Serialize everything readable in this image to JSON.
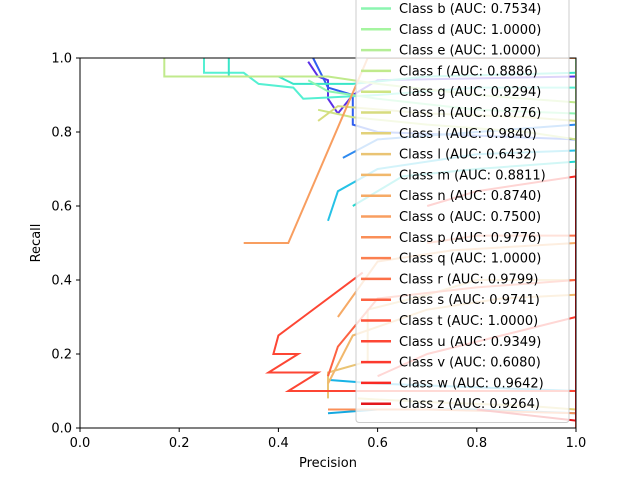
{
  "chart_data": {
    "type": "line",
    "title": "",
    "xlabel": "Precision",
    "ylabel": "Recall",
    "xlim": [
      0,
      1
    ],
    "ylim": [
      0,
      1
    ],
    "xticks": [
      "0.0",
      "0.2",
      "0.4",
      "0.6",
      "0.8",
      "1.0"
    ],
    "yticks": [
      "0.0",
      "0.2",
      "0.4",
      "0.6",
      "0.8",
      "1.0"
    ],
    "grid": false,
    "legend_position": "top-right",
    "series": [
      {
        "name": "Class b (AUC: 0.7534)",
        "color": "#8cf5b0",
        "points": [
          [
            0.46,
            0.94
          ],
          [
            0.5,
            0.91
          ],
          [
            0.6,
            0.89
          ],
          [
            0.8,
            0.86
          ],
          [
            1.0,
            0.85
          ]
        ]
      },
      {
        "name": "Class d (AUC: 1.0000)",
        "color": "#a5f5a0",
        "points": [
          [
            1.0,
            1.0
          ],
          [
            1.0,
            0.0
          ]
        ]
      },
      {
        "name": "Class e (AUC: 1.0000)",
        "color": "#b4ee96",
        "points": [
          [
            1.0,
            0.98
          ],
          [
            1.0,
            0.0
          ]
        ]
      },
      {
        "name": "Class f (AUC: 0.8886)",
        "color": "#c0ea8c",
        "points": [
          [
            0.17,
            1.0
          ],
          [
            0.17,
            0.95
          ],
          [
            0.5,
            0.95
          ],
          [
            0.6,
            0.93
          ],
          [
            0.8,
            0.9
          ],
          [
            1.0,
            0.88
          ]
        ]
      },
      {
        "name": "Class g (AUC: 0.9294)",
        "color": "#cee484",
        "points": [
          [
            0.48,
            0.86
          ],
          [
            0.55,
            0.84
          ],
          [
            0.7,
            0.82
          ],
          [
            0.9,
            0.8
          ],
          [
            1.0,
            0.78
          ]
        ]
      },
      {
        "name": "Class h (AUC: 0.8776)",
        "color": "#d7dc7e",
        "points": [
          [
            0.48,
            0.83
          ],
          [
            0.52,
            0.87
          ],
          [
            0.7,
            0.85
          ],
          [
            0.9,
            0.84
          ],
          [
            1.0,
            0.83
          ]
        ]
      },
      {
        "name": "Class i (AUC: 0.9840)",
        "color": "#e2d17a",
        "points": [
          [
            0.56,
            0.08
          ],
          [
            0.7,
            0.07
          ],
          [
            0.9,
            0.06
          ],
          [
            1.0,
            0.05
          ]
        ]
      },
      {
        "name": "Class l (AUC: 0.6432)",
        "color": "#eac474",
        "points": [
          [
            0.5,
            0.08
          ],
          [
            0.5,
            0.15
          ],
          [
            0.58,
            0.18
          ],
          [
            0.58,
            0.32
          ],
          [
            0.7,
            0.36
          ],
          [
            0.8,
            0.4
          ],
          [
            1.0,
            0.4
          ]
        ]
      },
      {
        "name": "Class m (AUC: 0.8811)",
        "color": "#f1b86c",
        "points": [
          [
            0.5,
            0.12
          ],
          [
            0.55,
            0.25
          ],
          [
            0.7,
            0.32
          ],
          [
            0.85,
            0.35
          ],
          [
            1.0,
            0.36
          ]
        ]
      },
      {
        "name": "Class n (AUC: 0.8740)",
        "color": "#f6aa66",
        "points": [
          [
            0.52,
            0.3
          ],
          [
            0.6,
            0.45
          ],
          [
            0.75,
            0.48
          ],
          [
            1.0,
            0.5
          ]
        ]
      },
      {
        "name": "Class o (AUC: 0.7500)",
        "color": "#f89e60",
        "points": [
          [
            0.33,
            0.5
          ],
          [
            0.42,
            0.5
          ],
          [
            0.58,
            1.0
          ],
          [
            1.0,
            1.0
          ]
        ]
      },
      {
        "name": "Class p (AUC: 0.9776)",
        "color": "#fa8f58",
        "points": [
          [
            0.5,
            0.05
          ],
          [
            0.7,
            0.05
          ],
          [
            1.0,
            0.04
          ]
        ]
      },
      {
        "name": "Class q (AUC: 1.0000)",
        "color": "#fb8050",
        "points": [
          [
            1.0,
            0.55
          ],
          [
            1.0,
            0.0
          ]
        ]
      },
      {
        "name": "Class r (AUC: 0.9799)",
        "color": "#fc7048",
        "points": [
          [
            0.7,
            0.5
          ],
          [
            0.8,
            0.52
          ],
          [
            1.0,
            0.52
          ]
        ]
      },
      {
        "name": "Class s (AUC: 0.9741)",
        "color": "#fd6242",
        "points": [
          [
            0.5,
            0.14
          ],
          [
            0.52,
            0.22
          ],
          [
            0.6,
            0.35
          ],
          [
            0.8,
            0.38
          ],
          [
            1.0,
            0.4
          ]
        ]
      },
      {
        "name": "Class t (AUC: 1.0000)",
        "color": "#fd533b",
        "points": [
          [
            1.0,
            0.7
          ],
          [
            1.0,
            0.0
          ]
        ]
      },
      {
        "name": "Class u (AUC: 0.9349)",
        "color": "#fd4634",
        "points": [
          [
            0.57,
            0.42
          ],
          [
            0.45,
            0.3
          ],
          [
            0.4,
            0.25
          ],
          [
            0.39,
            0.2
          ],
          [
            0.44,
            0.2
          ],
          [
            0.38,
            0.15
          ],
          [
            0.48,
            0.15
          ],
          [
            0.42,
            0.1
          ],
          [
            0.5,
            0.1
          ],
          [
            1.0,
            0.1
          ]
        ]
      },
      {
        "name": "Class v (AUC: 0.6080)",
        "color": "#fc3a2e",
        "points": [
          [
            0.6,
            0.14
          ],
          [
            0.7,
            0.2
          ],
          [
            0.85,
            0.25
          ],
          [
            1.0,
            0.3
          ]
        ]
      },
      {
        "name": "Class w (AUC: 0.9642)",
        "color": "#f92a24",
        "points": [
          [
            0.7,
            0.6
          ],
          [
            0.8,
            0.64
          ],
          [
            1.0,
            0.68
          ]
        ]
      },
      {
        "name": "Class z (AUC: 0.9264)",
        "color": "#e3171c",
        "points": [
          [
            0.8,
            0.05
          ],
          [
            1.0,
            0.02
          ],
          [
            1.0,
            0.68
          ]
        ]
      }
    ],
    "extra_curves": [
      {
        "color": "#5b2fe6",
        "points": [
          [
            0.46,
            0.99
          ],
          [
            0.48,
            0.95
          ],
          [
            0.5,
            0.94
          ],
          [
            0.5,
            0.89
          ],
          [
            0.52,
            0.85
          ],
          [
            0.55,
            0.9
          ],
          [
            0.6,
            0.94
          ],
          [
            1.0,
            0.95
          ]
        ]
      },
      {
        "color": "#2f5ef0",
        "points": [
          [
            0.47,
            1.0
          ],
          [
            0.5,
            0.92
          ],
          [
            0.55,
            0.9
          ],
          [
            0.55,
            0.82
          ],
          [
            0.6,
            0.8
          ],
          [
            1.0,
            0.78
          ]
        ]
      },
      {
        "color": "#2e8af0",
        "points": [
          [
            0.53,
            0.73
          ],
          [
            0.6,
            0.78
          ],
          [
            0.8,
            0.8
          ],
          [
            1.0,
            0.82
          ]
        ]
      },
      {
        "color": "#26c2e6",
        "points": [
          [
            0.5,
            0.56
          ],
          [
            0.52,
            0.64
          ],
          [
            0.6,
            0.7
          ],
          [
            0.8,
            0.74
          ],
          [
            1.0,
            0.75
          ]
        ]
      },
      {
        "color": "#20d8d0",
        "points": [
          [
            0.55,
            0.6
          ],
          [
            0.65,
            0.68
          ],
          [
            0.8,
            0.7
          ],
          [
            1.0,
            0.72
          ]
        ]
      },
      {
        "color": "#18b3e6",
        "points": [
          [
            0.5,
            0.13
          ],
          [
            0.6,
            0.12
          ],
          [
            1.0,
            0.1
          ]
        ]
      },
      {
        "color": "#15a8e0",
        "points": [
          [
            0.5,
            0.04
          ],
          [
            0.6,
            0.05
          ],
          [
            0.8,
            0.05
          ],
          [
            1.0,
            0.04
          ]
        ]
      },
      {
        "color": "#55f0d2",
        "points": [
          [
            0.25,
            1.0
          ],
          [
            0.25,
            0.96
          ],
          [
            0.33,
            0.96
          ],
          [
            0.36,
            0.93
          ],
          [
            0.43,
            0.92
          ],
          [
            0.45,
            0.89
          ],
          [
            0.6,
            0.9
          ],
          [
            0.8,
            0.92
          ],
          [
            1.0,
            0.92
          ]
        ]
      },
      {
        "color": "#3ae6c8",
        "points": [
          [
            0.3,
            1.0
          ],
          [
            0.3,
            0.95
          ],
          [
            0.4,
            0.95
          ],
          [
            0.43,
            0.93
          ],
          [
            0.55,
            0.93
          ],
          [
            0.7,
            0.95
          ],
          [
            1.0,
            0.96
          ]
        ]
      }
    ]
  }
}
